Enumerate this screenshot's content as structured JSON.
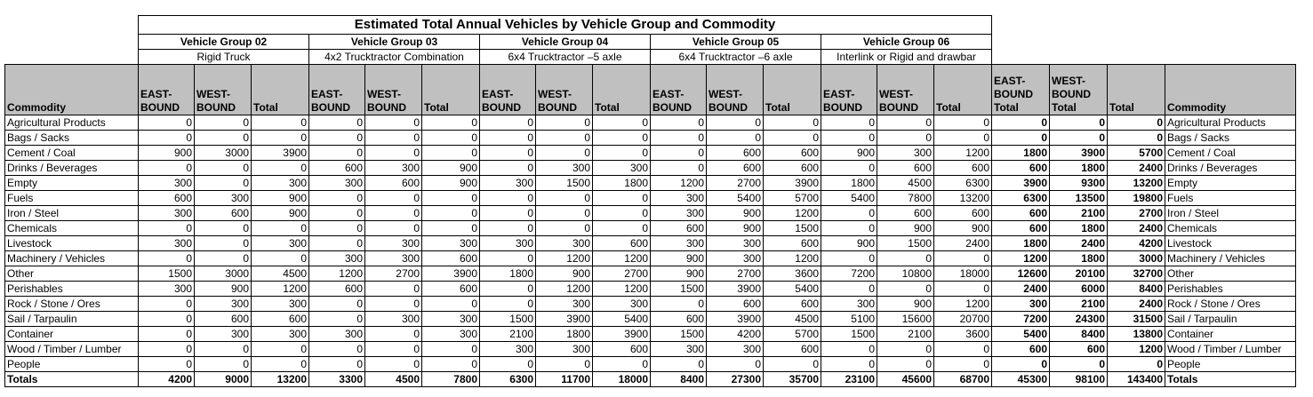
{
  "title": "Estimated Total Annual Vehicles by Vehicle Group and Commodity",
  "groups": [
    {
      "name": "Vehicle Group 02",
      "desc": "Rigid Truck"
    },
    {
      "name": "Vehicle Group 03",
      "desc": "4x2 Trucktractor Combination"
    },
    {
      "name": "Vehicle Group 04",
      "desc": "6x4 Trucktractor –5 axle"
    },
    {
      "name": "Vehicle Group 05",
      "desc": "6x4 Trucktractor –6 axle"
    },
    {
      "name": "Vehicle Group 06",
      "desc": "Interlink or Rigid and drawbar"
    }
  ],
  "headers": {
    "commodity": "Commodity",
    "group_cols": [
      "EAST-BOUND",
      "WEST-BOUND",
      "Total"
    ],
    "summary_cols": [
      "EAST-BOUND Total",
      "WEST-BOUND Total",
      "Total"
    ]
  },
  "rows": [
    {
      "label": "Agricultural Products",
      "values": [
        0,
        0,
        0,
        0,
        0,
        0,
        0,
        0,
        0,
        0,
        0,
        0,
        0,
        0,
        0,
        0,
        0,
        0
      ]
    },
    {
      "label": "Bags / Sacks",
      "values": [
        0,
        0,
        0,
        0,
        0,
        0,
        0,
        0,
        0,
        0,
        0,
        0,
        0,
        0,
        0,
        0,
        0,
        0
      ]
    },
    {
      "label": "Cement / Coal",
      "values": [
        900,
        3000,
        3900,
        0,
        0,
        0,
        0,
        0,
        0,
        0,
        600,
        600,
        900,
        300,
        1200,
        1800,
        3900,
        5700
      ]
    },
    {
      "label": "Drinks / Beverages",
      "values": [
        0,
        0,
        0,
        600,
        300,
        900,
        0,
        300,
        300,
        0,
        600,
        600,
        0,
        600,
        600,
        600,
        1800,
        2400
      ]
    },
    {
      "label": "Empty",
      "values": [
        300,
        0,
        300,
        300,
        600,
        900,
        300,
        1500,
        1800,
        1200,
        2700,
        3900,
        1800,
        4500,
        6300,
        3900,
        9300,
        13200
      ]
    },
    {
      "label": "Fuels",
      "values": [
        600,
        300,
        900,
        0,
        0,
        0,
        0,
        0,
        0,
        300,
        5400,
        5700,
        5400,
        7800,
        13200,
        6300,
        13500,
        19800
      ]
    },
    {
      "label": "Iron / Steel",
      "values": [
        300,
        600,
        900,
        0,
        0,
        0,
        0,
        0,
        0,
        300,
        900,
        1200,
        0,
        600,
        600,
        600,
        2100,
        2700
      ]
    },
    {
      "label": "Chemicals",
      "values": [
        0,
        0,
        0,
        0,
        0,
        0,
        0,
        0,
        0,
        600,
        900,
        1500,
        0,
        900,
        900,
        600,
        1800,
        2400
      ]
    },
    {
      "label": "Livestock",
      "values": [
        300,
        0,
        300,
        0,
        300,
        300,
        300,
        300,
        600,
        300,
        300,
        600,
        900,
        1500,
        2400,
        1800,
        2400,
        4200
      ]
    },
    {
      "label": "Machinery / Vehicles",
      "values": [
        0,
        0,
        0,
        300,
        300,
        600,
        0,
        1200,
        1200,
        900,
        300,
        1200,
        0,
        0,
        0,
        1200,
        1800,
        3000
      ]
    },
    {
      "label": "Other",
      "values": [
        1500,
        3000,
        4500,
        1200,
        2700,
        3900,
        1800,
        900,
        2700,
        900,
        2700,
        3600,
        7200,
        10800,
        18000,
        12600,
        20100,
        32700
      ]
    },
    {
      "label": "Perishables",
      "values": [
        300,
        900,
        1200,
        600,
        0,
        600,
        0,
        1200,
        1200,
        1500,
        3900,
        5400,
        0,
        0,
        0,
        2400,
        6000,
        8400
      ]
    },
    {
      "label": "Rock / Stone / Ores",
      "values": [
        0,
        300,
        300,
        0,
        0,
        0,
        0,
        300,
        300,
        0,
        600,
        600,
        300,
        900,
        1200,
        300,
        2100,
        2400
      ]
    },
    {
      "label": "Sail / Tarpaulin",
      "values": [
        0,
        600,
        600,
        0,
        300,
        300,
        1500,
        3900,
        5400,
        600,
        3900,
        4500,
        5100,
        15600,
        20700,
        7200,
        24300,
        31500
      ]
    },
    {
      "label": "Container",
      "values": [
        0,
        300,
        300,
        300,
        0,
        300,
        2100,
        1800,
        3900,
        1500,
        4200,
        5700,
        1500,
        2100,
        3600,
        5400,
        8400,
        13800
      ]
    },
    {
      "label": "Wood / Timber / Lumber",
      "values": [
        0,
        0,
        0,
        0,
        0,
        0,
        300,
        300,
        600,
        300,
        300,
        600,
        0,
        0,
        0,
        600,
        600,
        1200
      ]
    },
    {
      "label": "People",
      "values": [
        0,
        0,
        0,
        0,
        0,
        0,
        0,
        0,
        0,
        0,
        0,
        0,
        0,
        0,
        0,
        0,
        0,
        0
      ]
    }
  ],
  "totals": {
    "label": "Totals",
    "values": [
      4200,
      9000,
      13200,
      3300,
      4500,
      7800,
      6300,
      11700,
      18000,
      8400,
      27300,
      35700,
      23100,
      45600,
      68700,
      45300,
      98100,
      143400
    ]
  }
}
